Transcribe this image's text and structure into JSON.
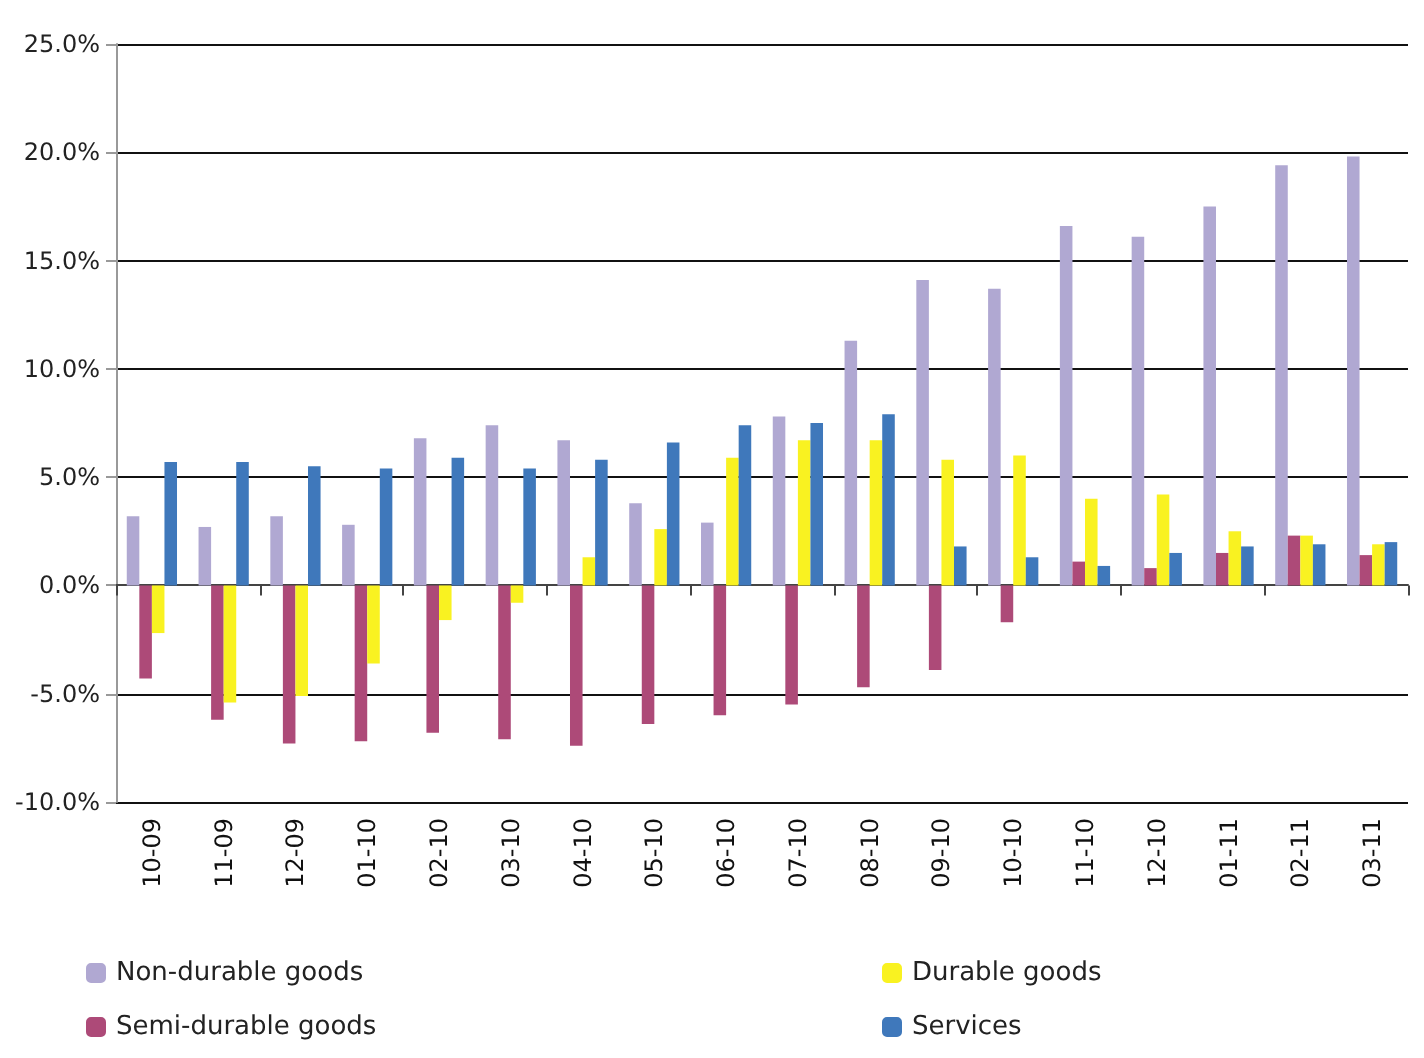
{
  "chart_data": {
    "type": "bar",
    "categories": [
      "10-09",
      "11-09",
      "12-09",
      "01-10",
      "02-10",
      "03-10",
      "04-10",
      "05-10",
      "06-10",
      "07-10",
      "08-10",
      "09-10",
      "10-10",
      "11-10",
      "12-10",
      "01-11",
      "02-11",
      "03-11"
    ],
    "series": [
      {
        "name": "Non-durable goods",
        "color": "#b0a8d2",
        "values": [
          3.2,
          2.7,
          3.2,
          2.8,
          6.8,
          7.4,
          6.7,
          3.8,
          2.9,
          7.8,
          11.3,
          14.1,
          13.7,
          16.6,
          16.1,
          17.5,
          19.4,
          19.8
        ]
      },
      {
        "name": "Semi-durable goods",
        "color": "#ad4a78",
        "values": [
          -4.3,
          -6.2,
          -7.3,
          -7.2,
          -6.8,
          -7.1,
          -7.4,
          -6.4,
          -6.0,
          -5.5,
          -4.7,
          -3.9,
          -1.7,
          1.1,
          0.8,
          1.5,
          2.3,
          1.4
        ]
      },
      {
        "name": "Durable goods",
        "color": "#f9f221",
        "values": [
          -2.2,
          -5.4,
          -5.1,
          -3.6,
          -1.6,
          -0.8,
          1.3,
          2.6,
          5.9,
          6.7,
          6.7,
          5.8,
          6.0,
          4.0,
          4.2,
          2.5,
          2.3,
          1.9
        ]
      },
      {
        "name": "Services",
        "color": "#3f78bb",
        "values": [
          5.7,
          5.7,
          5.5,
          5.4,
          5.9,
          5.4,
          5.8,
          6.6,
          7.4,
          7.5,
          7.9,
          1.8,
          1.3,
          0.9,
          1.5,
          1.8,
          1.9,
          2.0
        ]
      }
    ],
    "ylim": [
      -10,
      25
    ],
    "yticks": [
      {
        "value": -10,
        "label": "-10.0%"
      },
      {
        "value": -5,
        "label": "-5.0%"
      },
      {
        "value": 0,
        "label": "0.0%"
      },
      {
        "value": 5,
        "label": "5.0%"
      },
      {
        "value": 10,
        "label": "10.0%"
      },
      {
        "value": 15,
        "label": "15.0%"
      },
      {
        "value": 20,
        "label": "20.0%"
      },
      {
        "value": 25,
        "label": "25.0%"
      }
    ],
    "grid": "y",
    "legend": "bottom"
  }
}
